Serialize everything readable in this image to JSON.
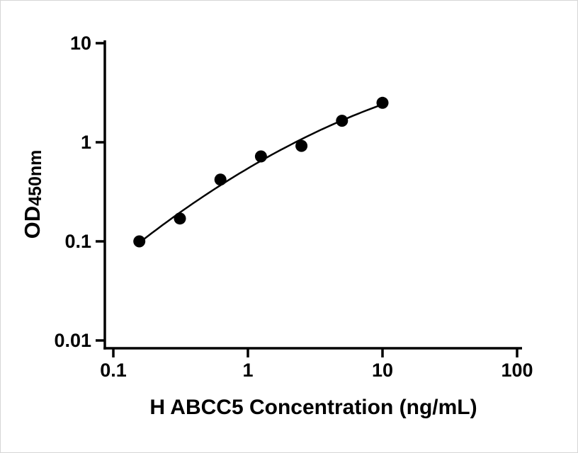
{
  "figure": {
    "background": "#ffffff"
  },
  "chart_data": {
    "type": "scatter",
    "title": "",
    "xlabel": "H ABCC5 Concentration (ng/mL)",
    "ylabel": "OD450nm",
    "ylabel_main": "OD",
    "ylabel_sub": "450nm",
    "x_scale": "log",
    "y_scale": "log",
    "xlim": [
      0.1,
      100
    ],
    "ylim": [
      0.01,
      10
    ],
    "x_ticks": [
      0.1,
      1,
      10,
      100
    ],
    "x_tick_labels": [
      "0.1",
      "1",
      "10",
      "100"
    ],
    "y_ticks": [
      0.01,
      0.1,
      1,
      10
    ],
    "y_tick_labels": [
      "0.01",
      "0.1",
      "1",
      "10"
    ],
    "grid": false,
    "legend": false,
    "axis_color": "#000000",
    "series": [
      {
        "name": "H ABCC5",
        "type": "scatter",
        "marker": "filled-circle",
        "color": "#000000",
        "points": [
          {
            "x": 0.156,
            "y": 0.1
          },
          {
            "x": 0.3125,
            "y": 0.17
          },
          {
            "x": 0.625,
            "y": 0.42
          },
          {
            "x": 1.25,
            "y": 0.72
          },
          {
            "x": 2.5,
            "y": 0.92
          },
          {
            "x": 5,
            "y": 1.65
          },
          {
            "x": 10,
            "y": 2.5
          }
        ]
      }
    ],
    "fit_line": {
      "type": "log-log-quadratic-least-squares",
      "x_range": [
        0.148,
        10.2
      ],
      "color": "#000000"
    }
  }
}
